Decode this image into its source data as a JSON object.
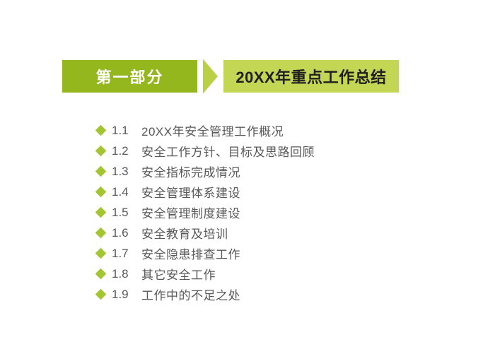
{
  "colors": {
    "section_number_box_bg": "#94B71E",
    "section_title_box_bg": "#C4D755",
    "arrow": "#BAD146",
    "bullet_diamond": "#A3C52F",
    "toc_text": "#595959",
    "section_title_text": "#202020",
    "section_number_text": "#FFFFFF",
    "background": "#FFFFFF"
  },
  "header": {
    "section_label": "第一部分",
    "section_title": "20XX年重点工作总结"
  },
  "toc": {
    "items": [
      {
        "number": "1.1",
        "title": "20XX年安全管理工作概况"
      },
      {
        "number": "1.2",
        "title": "安全工作方针、目标及思路回顾"
      },
      {
        "number": "1.3",
        "title": "安全指标完成情况"
      },
      {
        "number": "1.4",
        "title": "安全管理体系建设"
      },
      {
        "number": "1.5",
        "title": "安全管理制度建设"
      },
      {
        "number": "1.6",
        "title": "安全教育及培训"
      },
      {
        "number": "1.7",
        "title": "安全隐患排查工作"
      },
      {
        "number": "1.8",
        "title": "其它安全工作"
      },
      {
        "number": "1.9",
        "title": "工作中的不足之处"
      }
    ]
  }
}
